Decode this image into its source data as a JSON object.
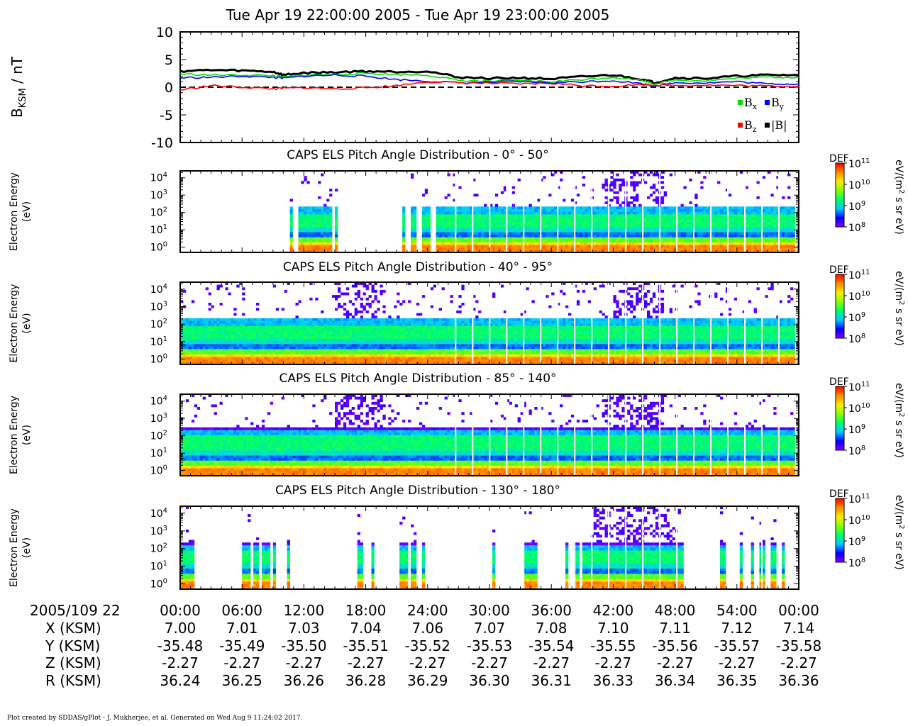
{
  "title": "Tue Apr 19 22:00:00 2005 - Tue Apr 19 23:00:00 2005",
  "footer": "Plot created by SDDAS/gPlot - J. Mukherjee, et al.  Generated on Wed Aug 9 11:24:02 2017.",
  "colors": {
    "bx": "#00dd00",
    "by": "#0000ff",
    "bz": "#ff0000",
    "btot": "#000000",
    "colormap": [
      "#8800ff",
      "#0000ff",
      "#00ccff",
      "#00ff66",
      "#88ff00",
      "#ffee00",
      "#ff8800",
      "#ff0000"
    ]
  },
  "chart_data": [
    {
      "type": "line",
      "ylabel": "B",
      "ylabel_sub": "KSM",
      "ylabel_unit": " / nT",
      "ylim": [
        -10,
        10
      ],
      "yticks": [
        "10",
        "5",
        "0",
        "-5",
        "-10"
      ],
      "xlim_minutes": [
        0,
        60
      ],
      "zero_line": "dashed",
      "legend": {
        "placement": "bottom-right",
        "items": [
          {
            "key": "bx",
            "label": "B",
            "sub": "x"
          },
          {
            "key": "by",
            "label": "B",
            "sub": "y"
          },
          {
            "key": "bz",
            "label": "B",
            "sub": "z"
          },
          {
            "key": "btot",
            "label": "|B|",
            "sub": ""
          }
        ]
      },
      "x": [
        0,
        3,
        6,
        9,
        10,
        12,
        15,
        18,
        21,
        24,
        27,
        30,
        33,
        36,
        39,
        42,
        45,
        46,
        48,
        51,
        54,
        57,
        60
      ],
      "series": [
        {
          "key": "btot",
          "values": [
            2.9,
            3.1,
            3.0,
            2.8,
            2.2,
            2.6,
            2.7,
            2.9,
            2.8,
            2.9,
            1.8,
            1.6,
            1.7,
            1.5,
            1.9,
            2.2,
            1.4,
            0.8,
            1.7,
            1.6,
            2.0,
            2.2,
            2.2
          ]
        },
        {
          "key": "bx",
          "values": [
            2.4,
            2.2,
            2.2,
            2.1,
            1.8,
            2.2,
            2.3,
            2.5,
            2.3,
            2.2,
            1.2,
            1.1,
            1.2,
            1.0,
            1.4,
            1.8,
            1.2,
            0.6,
            1.3,
            1.2,
            1.6,
            1.8,
            1.8
          ]
        },
        {
          "key": "by",
          "values": [
            1.7,
            1.8,
            2.0,
            1.8,
            1.6,
            2.0,
            2.2,
            2.0,
            1.4,
            1.1,
            0.8,
            0.9,
            1.0,
            0.8,
            1.0,
            1.2,
            0.6,
            0.2,
            0.8,
            0.8,
            1.0,
            0.6,
            0.6
          ]
        },
        {
          "key": "bz",
          "values": [
            -0.5,
            0.3,
            0.0,
            -0.3,
            -0.2,
            -0.1,
            -0.3,
            -0.1,
            0.3,
            1.0,
            0.8,
            0.7,
            0.6,
            0.7,
            0.3,
            0.2,
            0.5,
            0.4,
            0.3,
            0.4,
            0.3,
            0.2,
            0.2
          ]
        }
      ]
    },
    {
      "type": "heatmap",
      "title": "CAPS ELS Pitch Angle Distribution - 0° - 50°",
      "ylabel": "Electron Energy",
      "yunit": "(eV)",
      "y_scale": "log",
      "ylim": [
        0.5,
        25000
      ],
      "yticks": [
        1,
        10,
        100,
        1000,
        10000
      ],
      "xlim_minutes": [
        0,
        60
      ],
      "flux_ceiling_eV": 250,
      "data_intervals_minutes": [
        [
          9.2,
          9.4
        ],
        [
          10.6,
          10.9
        ],
        [
          11.5,
          14.6
        ],
        [
          14.9,
          15.3
        ],
        [
          21.6,
          21.9
        ],
        [
          22.3,
          22.9
        ],
        [
          23.5,
          24.3
        ],
        [
          24.8,
          60
        ]
      ],
      "sparse_high_energy_minutes": [
        [
          41,
          47
        ]
      ],
      "colorbar": {
        "label": "DEF",
        "unit": "eV/(m2 s sr eV)",
        "min_exp": 8,
        "max_exp": 11
      }
    },
    {
      "type": "heatmap",
      "title": "CAPS ELS Pitch Angle Distribution - 40° - 95°",
      "ylabel": "Electron Energy",
      "yunit": "(eV)",
      "y_scale": "log",
      "ylim": [
        0.5,
        25000
      ],
      "yticks": [
        1,
        10,
        100,
        1000,
        10000
      ],
      "xlim_minutes": [
        0,
        60
      ],
      "flux_ceiling_eV": 250,
      "data_intervals_minutes": [
        [
          0,
          60
        ]
      ],
      "sparse_high_energy_minutes": [
        [
          15,
          20
        ],
        [
          42,
          47
        ]
      ],
      "colorbar": {
        "label": "DEF",
        "unit": "eV/(m2 s sr eV)",
        "min_exp": 8,
        "max_exp": 11
      }
    },
    {
      "type": "heatmap",
      "title": "CAPS ELS Pitch Angle Distribution - 85° - 140°",
      "ylabel": "Electron Energy",
      "yunit": "(eV)",
      "y_scale": "log",
      "ylim": [
        0.5,
        25000
      ],
      "yticks": [
        1,
        10,
        100,
        1000,
        10000
      ],
      "xlim_minutes": [
        0,
        60
      ],
      "flux_ceiling_eV": 300,
      "data_intervals_minutes": [
        [
          0,
          60
        ]
      ],
      "sparse_high_energy_minutes": [
        [
          15,
          20
        ],
        [
          41,
          47
        ]
      ],
      "colorbar": {
        "label": "DEF",
        "unit": "eV/(m2 s sr eV)",
        "min_exp": 8,
        "max_exp": 11
      }
    },
    {
      "type": "heatmap",
      "title": "CAPS ELS Pitch Angle Distribution - 130° - 180°",
      "ylabel": "Electron Energy",
      "yunit": "(eV)",
      "y_scale": "log",
      "ylim": [
        0.5,
        25000
      ],
      "yticks": [
        1,
        10,
        100,
        1000,
        10000
      ],
      "xlim_minutes": [
        0,
        60
      ],
      "flux_ceiling_eV": 200,
      "data_intervals_minutes": [
        [
          0.1,
          1.4
        ],
        [
          6.1,
          6.7
        ],
        [
          7.0,
          7.5
        ],
        [
          7.8,
          8.8
        ],
        [
          9.0,
          9.3
        ],
        [
          10.4,
          10.6
        ],
        [
          17.2,
          17.6
        ],
        [
          18.6,
          18.8
        ],
        [
          21.2,
          22.1
        ],
        [
          22.4,
          22.9
        ],
        [
          23.4,
          23.6
        ],
        [
          30.3,
          30.5
        ],
        [
          33.3,
          34.6
        ],
        [
          37.5,
          37.7
        ],
        [
          38.3,
          38.7
        ],
        [
          39.0,
          48.9
        ],
        [
          52.3,
          52.9
        ],
        [
          54.2,
          54.6
        ],
        [
          55.4,
          55.7
        ],
        [
          56.2,
          56.6
        ],
        [
          57.3,
          57.9
        ],
        [
          58.4,
          58.7
        ]
      ],
      "sparse_high_energy_minutes": [
        [
          40,
          48
        ]
      ],
      "colorbar": {
        "label": "DEF",
        "unit": "eV/(m2 s sr eV)",
        "min_exp": 8,
        "max_exp": 11
      }
    }
  ],
  "x_axis": {
    "row_labels": [
      "2005/109 22",
      "X (KSM)",
      "Y (KSM)",
      "Z (KSM)",
      "R (KSM)"
    ],
    "time": [
      "00:00",
      "06:00",
      "12:00",
      "18:00",
      "24:00",
      "30:00",
      "36:00",
      "42:00",
      "48:00",
      "54:00",
      "00:00"
    ],
    "X": [
      "7.00",
      "7.01",
      "7.03",
      "7.04",
      "7.06",
      "7.07",
      "7.08",
      "7.10",
      "7.11",
      "7.12",
      "7.14"
    ],
    "Y": [
      "-35.48",
      "-35.49",
      "-35.50",
      "-35.51",
      "-35.52",
      "-35.53",
      "-35.54",
      "-35.55",
      "-35.56",
      "-35.57",
      "-35.58"
    ],
    "Z": [
      "-2.27",
      "-2.27",
      "-2.27",
      "-2.27",
      "-2.27",
      "-2.27",
      "-2.27",
      "-2.27",
      "-2.27",
      "-2.27",
      "-2.27"
    ],
    "R": [
      "36.24",
      "36.25",
      "36.26",
      "36.28",
      "36.29",
      "36.30",
      "36.31",
      "36.33",
      "36.34",
      "36.35",
      "36.36"
    ]
  }
}
